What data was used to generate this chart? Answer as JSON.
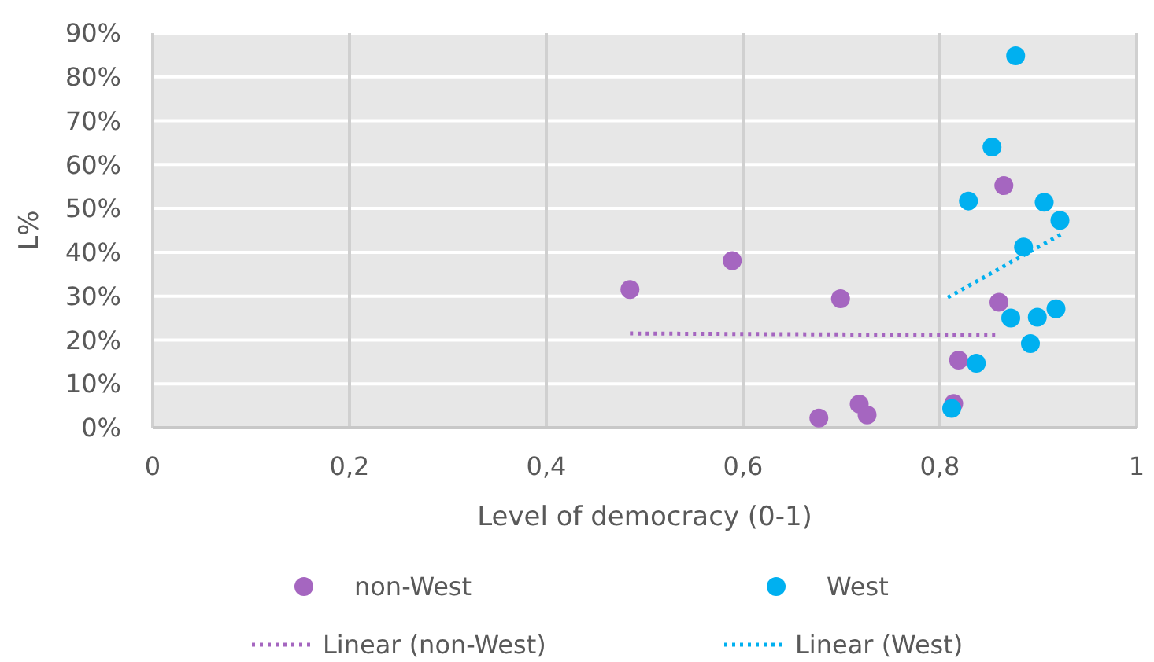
{
  "chart_data": {
    "type": "scatter",
    "xlabel": "Level of democracy (0-1)",
    "ylabel": "L%",
    "xlim": [
      0,
      1
    ],
    "ylim": [
      0,
      90
    ],
    "xticks": [
      0,
      {
        "value": 0.2,
        "label": "0,2"
      },
      {
        "value": 0.4,
        "label": "0,4"
      },
      {
        "value": 0.6,
        "label": "0,6"
      },
      {
        "value": 0.8,
        "label": "0,8"
      },
      1
    ],
    "yticks": [
      {
        "value": 0,
        "label": "0%"
      },
      {
        "value": 10,
        "label": "10%"
      },
      {
        "value": 20,
        "label": "20%"
      },
      {
        "value": 30,
        "label": "30%"
      },
      {
        "value": 40,
        "label": "40%"
      },
      {
        "value": 50,
        "label": "50%"
      },
      {
        "value": 60,
        "label": "60%"
      },
      {
        "value": 70,
        "label": "70%"
      },
      {
        "value": 80,
        "label": "80%"
      },
      {
        "value": 90,
        "label": "90%"
      }
    ],
    "grid": true,
    "legend": "bottom",
    "series": [
      {
        "name": "non-West",
        "marker": "circle",
        "color": "#a566c0",
        "x": [
          0.485,
          0.589,
          0.699,
          0.677,
          0.718,
          0.726,
          0.819,
          0.814,
          0.86,
          0.865
        ],
        "values": [
          31.5,
          38.1,
          29.4,
          2.2,
          5.4,
          2.9,
          15.4,
          5.5,
          28.6,
          55.2
        ]
      },
      {
        "name": "West",
        "marker": "circle",
        "color": "#00b0f0",
        "x": [
          0.877,
          0.853,
          0.829,
          0.906,
          0.922,
          0.885,
          0.872,
          0.899,
          0.918,
          0.892,
          0.837,
          0.812
        ],
        "values": [
          84.8,
          64.0,
          51.7,
          51.4,
          47.3,
          41.2,
          25.0,
          25.2,
          27.1,
          19.2,
          14.7,
          4.4
        ]
      },
      {
        "name": "Linear (non-West)",
        "type": "line",
        "marker": "none",
        "line_style": "dotted",
        "color": "#a566c0",
        "x": [
          0.485,
          0.86
        ],
        "values": [
          21.5,
          21.1
        ]
      },
      {
        "name": "Linear (West)",
        "type": "line",
        "marker": "none",
        "line_style": "dotted",
        "color": "#00b0f0",
        "x": [
          0.808,
          0.924
        ],
        "values": [
          29.7,
          44.2
        ]
      }
    ]
  }
}
